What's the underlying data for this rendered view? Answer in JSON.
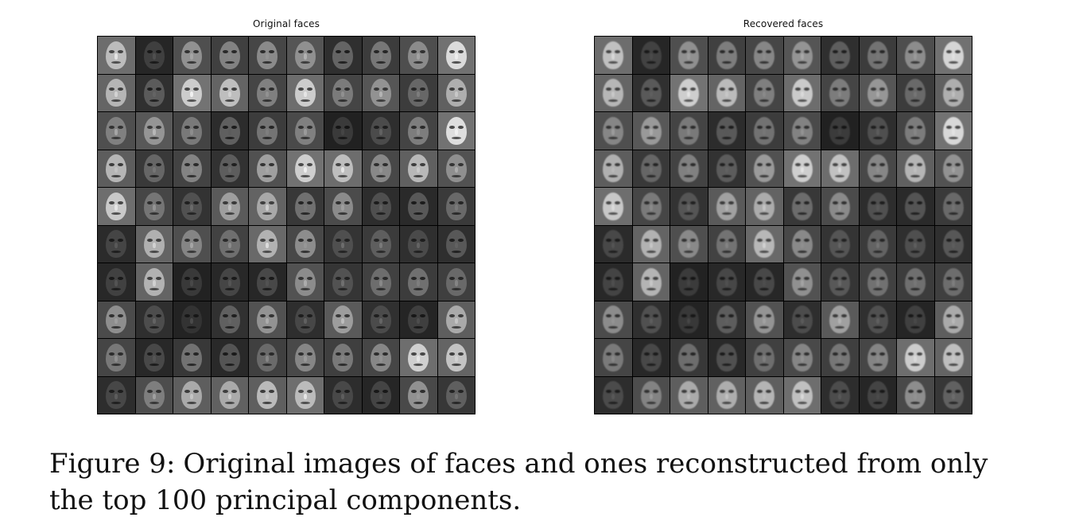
{
  "figure": {
    "left_panel": {
      "title": "Original faces",
      "rows": 10,
      "cols": 10
    },
    "right_panel": {
      "title": "Recovered faces",
      "rows": 10,
      "cols": 10
    },
    "caption": {
      "label": "Figure 9:",
      "text": "Original images of faces and ones reconstructed from only the top 100 principal components."
    }
  }
}
